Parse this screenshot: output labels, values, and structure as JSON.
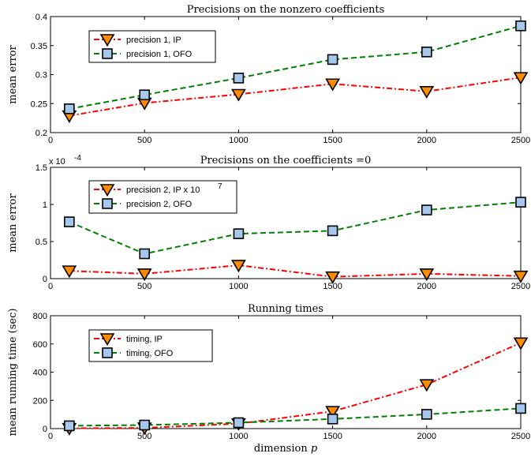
{
  "colors": {
    "ip_line": "#ff0000",
    "ofo_line": "#008000",
    "ip_marker_fill": "#ff8c00",
    "ofo_marker_fill": "#a6c8ec",
    "marker_edge": "#000000"
  },
  "xlabel_parts": [
    "dimension ",
    "p"
  ],
  "chart_data": [
    {
      "type": "line",
      "title": "Precisions on the nonzero coefficients",
      "xlabel": "",
      "ylabel": "mean error",
      "x": [
        100,
        500,
        1000,
        1500,
        2000,
        2500
      ],
      "xlim": [
        0,
        2500
      ],
      "ylim": [
        0.2,
        0.4
      ],
      "xticks": [
        "0",
        "500",
        "1000",
        "1500",
        "2000",
        "2500"
      ],
      "yticks": [
        "0.2",
        "0.25",
        "0.3",
        "0.35",
        "0.4"
      ],
      "ytick_values": [
        0.2,
        0.25,
        0.3,
        0.35,
        0.4
      ],
      "exponent_label": "",
      "legend_placement": "top-left",
      "legend_labels": [
        "precision 1, IP",
        "precision 1, OFO"
      ],
      "series": [
        {
          "name": "precision 1, IP",
          "values": [
            0.229,
            0.251,
            0.266,
            0.284,
            0.271,
            0.295
          ]
        },
        {
          "name": "precision 1, OFO",
          "values": [
            0.241,
            0.265,
            0.294,
            0.326,
            0.339,
            0.384
          ]
        }
      ]
    },
    {
      "type": "line",
      "title": "Precisions on the coefficients =0",
      "xlabel": "",
      "ylabel": "mean error",
      "x": [
        100,
        500,
        1000,
        1500,
        2000,
        2500
      ],
      "xlim": [
        0,
        2500
      ],
      "ylim": [
        0,
        0.00015
      ],
      "xticks": [
        "0",
        "500",
        "1000",
        "1500",
        "2000",
        "2500"
      ],
      "yticks": [
        "0",
        "0.5",
        "1",
        "1.5"
      ],
      "ytick_values": [
        0,
        5e-05,
        0.0001,
        0.00015
      ],
      "exponent_label": "x 10",
      "exponent_power": "-4",
      "legend_placement": "top-left",
      "legend_labels": [
        "precision 2, IP x 10",
        "precision 2, OFO"
      ],
      "legend_superscript": "7",
      "series": [
        {
          "name": "precision 2, IP x 10^7",
          "values": [
            1.05e-05,
            6.5e-06,
            1.8e-05,
            2.5e-06,
            6.5e-06,
            3.5e-06
          ]
        },
        {
          "name": "precision 2, OFO",
          "values": [
            7.65e-05,
            3.35e-05,
            6.05e-05,
            6.45e-05,
            9.25e-05,
            0.000103
          ]
        }
      ]
    },
    {
      "type": "line",
      "title": "Running times",
      "xlabel": "dimension p",
      "ylabel": "mean running time (sec)",
      "x": [
        100,
        500,
        1000,
        1500,
        2000,
        2500
      ],
      "xlim": [
        0,
        2500
      ],
      "ylim": [
        0,
        800
      ],
      "xticks": [
        "0",
        "500",
        "1000",
        "1500",
        "2000",
        "2500"
      ],
      "yticks": [
        "0",
        "200",
        "400",
        "600",
        "800"
      ],
      "ytick_values": [
        0,
        200,
        400,
        600,
        800
      ],
      "exponent_label": "",
      "legend_placement": "top-left",
      "legend_labels": [
        "timing, IP",
        "timing, OFO"
      ],
      "series": [
        {
          "name": "timing, IP",
          "values": [
            2,
            5,
            35,
            122,
            312,
            608
          ]
        },
        {
          "name": "timing, OFO",
          "values": [
            20,
            25,
            42,
            68,
            101,
            143
          ]
        }
      ]
    }
  ]
}
